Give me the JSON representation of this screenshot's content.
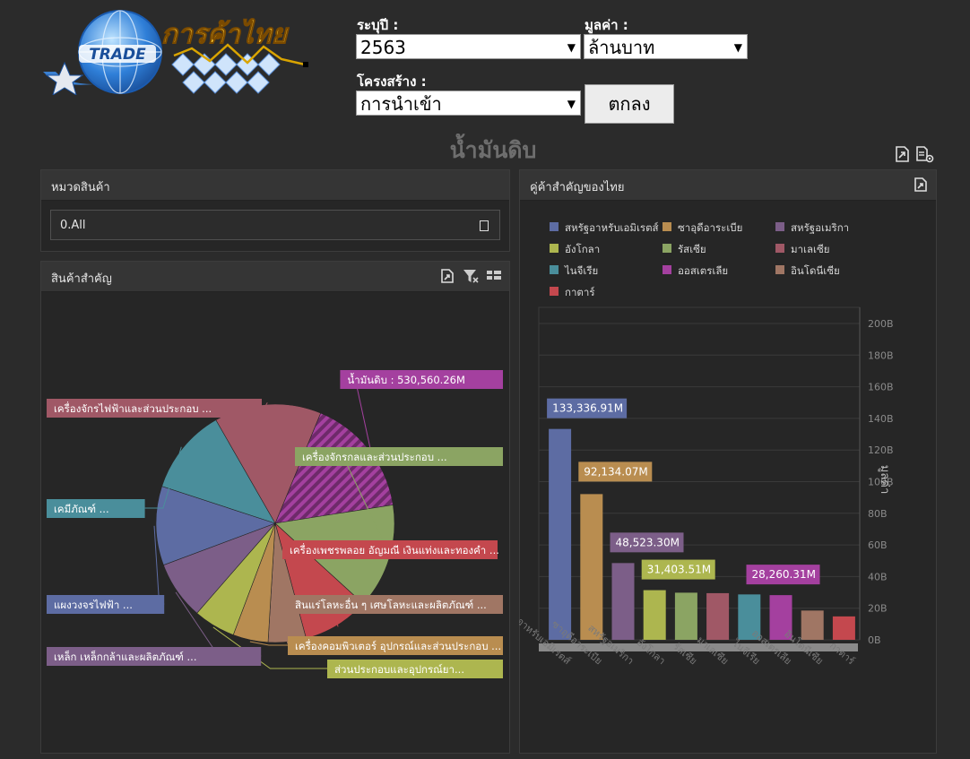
{
  "logo": {
    "text_trade": "TRADE",
    "text_thai": "การค้าไทย"
  },
  "filters": {
    "year_label": "ระบุปี :",
    "year_value": "2563",
    "value_label": "มูลค่า :",
    "value_value": "ล้านบาท",
    "structure_label": "โครงสร้าง :",
    "structure_value": "การนำเข้า",
    "submit_label": "ตกลง"
  },
  "page_title": "น้ำมันดิบ",
  "category_panel": {
    "title": "หมวดสินค้า",
    "value": "0.All"
  },
  "products_panel": {
    "title": "สินค้าสำคัญ"
  },
  "partners_panel": {
    "title": "คู่ค้าสำคัญของไทย"
  },
  "chart_data": [
    {
      "type": "pie",
      "labels": [
        "น้ำมันดิบ : 530,560.26M",
        "เครื่องจักรกลและส่วนประกอบ ...",
        "เครื่องเพชรพลอย อัญมณี เงินแท่งและทองคำ ...",
        "สินแร่โลหะอื่น ๆ เศษโลหะและผลิตภัณฑ์ ...",
        "เครื่องคอมพิวเตอร์ อุปกรณ์และส่วนประกอบ ...",
        "ส่วนประกอบและอุปกรณ์ยา...",
        "เหล็ก เหล็กกล้าและผลิตภัณฑ์ ...",
        "แผงวงจรไฟฟ้า ...",
        "เคมีภัณฑ์ ...",
        "เครื่องจักรไฟฟ้าและส่วนประกอบ ..."
      ],
      "values": [
        530560.26,
        464000,
        294000,
        167000,
        155000,
        185000,
        257000,
        349000,
        380000,
        472000
      ],
      "colors": [
        "#a4409f",
        "#8ba463",
        "#c4484e",
        "#a07664",
        "#b98d50",
        "#adb64f",
        "#7c5e88",
        "#5d6ca3",
        "#4a8e9b",
        "#a05866"
      ]
    },
    {
      "type": "bar",
      "legend_placement": "top",
      "categories": [
        "สหรัฐอาหรับเอมิเรตส์",
        "ซาอุดีอาระเบีย",
        "สหรัฐอเมริกา",
        "อังโกลา",
        "รัสเซีย",
        "มาเลเซีย",
        "ไนจีเรีย",
        "ออสเตรเลีย",
        "อินโดนีเซีย",
        "กาตาร์"
      ],
      "values": [
        133336.91,
        92134.07,
        48523.3,
        31403.51,
        29800,
        29500,
        28700,
        28260.31,
        18500,
        14800
      ],
      "data_labels": [
        "133,336.91M",
        "92,134.07M",
        "48,523.30M",
        "31,403.51M",
        "",
        "",
        "",
        "28,260.31M",
        "",
        ""
      ],
      "colors": [
        "#5d6ca3",
        "#b98d50",
        "#7c5e88",
        "#adb64f",
        "#8ba463",
        "#a05866",
        "#4a8e9b",
        "#a4409f",
        "#a07664",
        "#c4484e"
      ],
      "yaxis_label": "มูลค่า",
      "y_ticks": [
        "0B",
        "20B",
        "40B",
        "60B",
        "80B",
        "100B",
        "120B",
        "140B",
        "160B",
        "180B",
        "200B"
      ],
      "ylim": [
        0,
        200000
      ]
    }
  ]
}
